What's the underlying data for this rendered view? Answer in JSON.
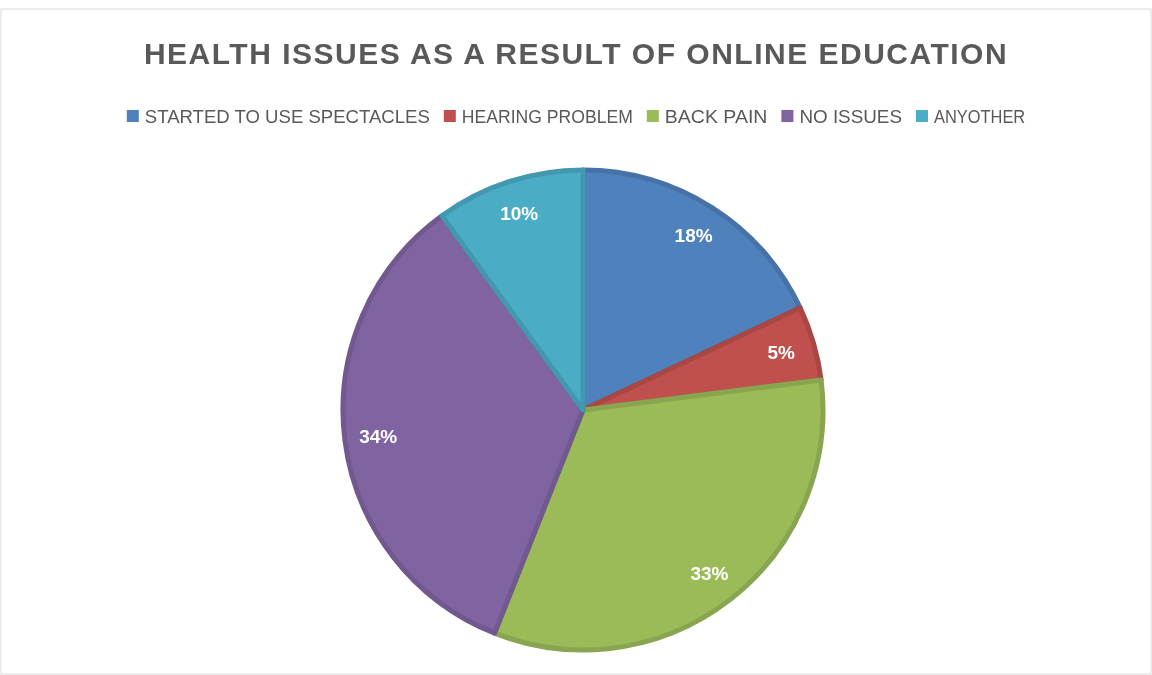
{
  "chart_data": {
    "type": "pie",
    "title": "HEALTH ISSUES AS A RESULT OF ONLINE EDUCATION",
    "categories": [
      "STARTED TO USE SPECTACLES",
      "HEARING PROBLEM",
      "BACK PAIN",
      "NO ISSUES",
      "ANYOTHER"
    ],
    "values": [
      18,
      5,
      33,
      34,
      10
    ],
    "colors": [
      "#4f81bd",
      "#c0504d",
      "#9bbb59",
      "#8064a2",
      "#4bacc6"
    ],
    "value_labels": [
      "18%",
      "5%",
      "33%",
      "34%",
      "10%"
    ],
    "legend": "top"
  }
}
